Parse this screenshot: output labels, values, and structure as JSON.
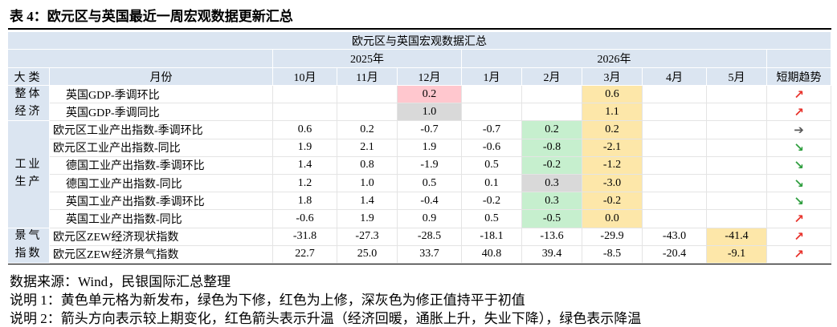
{
  "title": "表 4：欧元区与英国最近一周宏观数据更新汇总",
  "table": {
    "caption": "欧元区与英国宏观数据汇总",
    "category_header": "大类",
    "indicator_header": "月份",
    "trend_header": "短期趋势",
    "years": [
      {
        "label": "2025年",
        "months": [
          "10月",
          "11月",
          "12月"
        ]
      },
      {
        "label": "2026年",
        "months": [
          "1月",
          "2月",
          "3月",
          "4月",
          "5月"
        ]
      }
    ],
    "groups": [
      {
        "label": [
          "整体",
          "经济"
        ],
        "rows": [
          {
            "name": "英国GDP-季调环比",
            "values": [
              null,
              null,
              "0.2",
              null,
              null,
              "0.6",
              null,
              null
            ],
            "fills": [
              null,
              null,
              "#ffc7ce",
              null,
              null,
              "#fde7a9",
              null,
              null
            ],
            "trend": {
              "arrow": "↗",
              "color": "#e8322b"
            }
          },
          {
            "name": "英国GDP-季调同比",
            "values": [
              null,
              null,
              "1.0",
              null,
              null,
              "1.1",
              null,
              null
            ],
            "fills": [
              null,
              null,
              "#d9d9d9",
              null,
              null,
              "#fde7a9",
              null,
              null
            ],
            "trend": {
              "arrow": "↗",
              "color": "#e8322b"
            }
          }
        ]
      },
      {
        "label": [
          "工业",
          "生产"
        ],
        "rows": [
          {
            "name": "欧元区工业产出指数-季调环比",
            "values": [
              "0.6",
              "0.2",
              "-0.7",
              "-0.7",
              "0.2",
              "0.2",
              null,
              null
            ],
            "fills": [
              null,
              null,
              null,
              null,
              "#c6efce",
              "#fde7a9",
              null,
              null
            ],
            "trend": {
              "arrow": "➔",
              "color": "#595959"
            }
          },
          {
            "name": "欧元区工业产出指数-同比",
            "values": [
              "1.9",
              "2.1",
              "1.9",
              "-0.6",
              "-0.8",
              "-2.1",
              null,
              null
            ],
            "fills": [
              null,
              null,
              null,
              null,
              "#c6efce",
              "#fde7a9",
              null,
              null
            ],
            "trend": {
              "arrow": "↘",
              "color": "#2e9e3e"
            }
          },
          {
            "name": "德国工业产出指数-季调环比",
            "values": [
              "1.4",
              "0.8",
              "-1.9",
              "0.5",
              "-0.2",
              "-1.2",
              null,
              null
            ],
            "fills": [
              null,
              null,
              null,
              null,
              "#c6efce",
              "#fde7a9",
              null,
              null
            ],
            "trend": {
              "arrow": "↘",
              "color": "#2e9e3e"
            }
          },
          {
            "name": "德国工业产出指数-同比",
            "values": [
              "1.2",
              "1.0",
              "0.5",
              "0.1",
              "0.3",
              "-3.0",
              null,
              null
            ],
            "fills": [
              null,
              null,
              null,
              null,
              "#d9d9d9",
              "#fde7a9",
              null,
              null
            ],
            "trend": {
              "arrow": "↘",
              "color": "#2e9e3e"
            }
          },
          {
            "name": "英国工业产出指数-季调环比",
            "values": [
              "1.8",
              "1.4",
              "-0.4",
              "-0.2",
              "0.3",
              "-0.2",
              null,
              null
            ],
            "fills": [
              null,
              null,
              null,
              null,
              "#c6efce",
              "#fde7a9",
              null,
              null
            ],
            "trend": {
              "arrow": "↘",
              "color": "#2e9e3e"
            }
          },
          {
            "name": "英国工业产出指数-同比",
            "values": [
              "-0.6",
              "1.9",
              "0.9",
              "0.5",
              "-0.5",
              "0.0",
              null,
              null
            ],
            "fills": [
              null,
              null,
              null,
              null,
              "#c6efce",
              "#fde7a9",
              null,
              null
            ],
            "trend": {
              "arrow": "↗",
              "color": "#e8322b"
            }
          }
        ]
      },
      {
        "label": [
          "景气",
          "指数"
        ],
        "rows": [
          {
            "name": "欧元区ZEW经济现状指数",
            "values": [
              "-31.8",
              "-27.3",
              "-28.5",
              "-18.1",
              "-13.6",
              "-29.9",
              "-43.0",
              "-41.4"
            ],
            "fills": [
              null,
              null,
              null,
              null,
              null,
              null,
              null,
              "#fde7a9"
            ],
            "trend": {
              "arrow": "↗",
              "color": "#e8322b"
            }
          },
          {
            "name": "欧元区ZEW经济景气指数",
            "values": [
              "22.7",
              "25.0",
              "33.7",
              "40.8",
              "39.4",
              "-8.5",
              "-20.4",
              "-9.1"
            ],
            "fills": [
              null,
              null,
              null,
              null,
              null,
              null,
              null,
              "#fde7a9"
            ],
            "trend": {
              "arrow": "↗",
              "color": "#e8322b"
            }
          }
        ]
      }
    ]
  },
  "notes": [
    "数据来源：Wind，民银国际汇总整理",
    "说明 1：黄色单元格为新发布，绿色为下修，红色为上修，深灰色为修正值持平于初值",
    "说明 2：箭头方向表示较上期变化，红色箭头表示升温（经济回暖，通胀上升，失业下降），绿色表示降温"
  ]
}
